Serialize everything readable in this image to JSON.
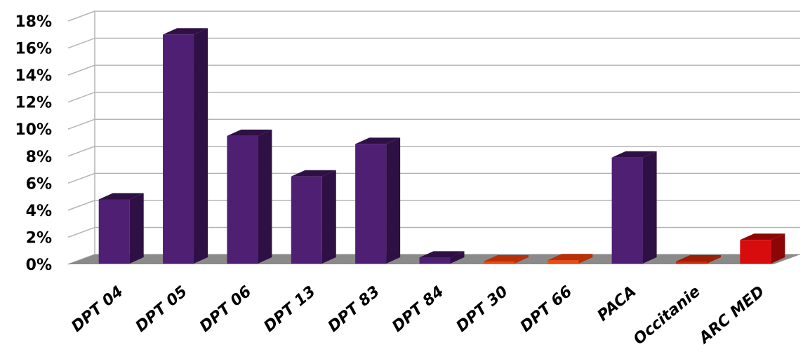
{
  "chart_data": {
    "type": "bar",
    "title": "",
    "xlabel": "",
    "ylabel": "",
    "categories": [
      "DPT 04",
      "DPT 05",
      "DPT 06",
      "DPT 13",
      "DPT 83",
      "DPT 84",
      "DPT 30",
      "DPT 66",
      "PACA",
      "Occitanie",
      "ARC MED"
    ],
    "values": [
      4.8,
      17.0,
      9.5,
      6.5,
      8.9,
      0.5,
      0.1,
      0.3,
      7.9,
      0.0,
      1.8
    ],
    "ylim": [
      0,
      18
    ],
    "yticks": [
      "0%",
      "2%",
      "4%",
      "6%",
      "8%",
      "10%",
      "12%",
      "14%",
      "16%",
      "18%"
    ],
    "grid": true,
    "legend": "none",
    "three_d": true,
    "colors": {
      "DPT 04": "#4f1f73",
      "DPT 05": "#4f1f73",
      "DPT 06": "#4f1f73",
      "DPT 13": "#4f1f73",
      "DPT 83": "#4f1f73",
      "DPT 84": "#4f1f73",
      "DPT 30": "#f04a10",
      "DPT 66": "#f04a10",
      "PACA": "#4f1f73",
      "Occitanie": "#d12a08",
      "ARC MED": "#d80c0c"
    },
    "side_colors": {
      "DPT 04": "#2e1045",
      "DPT 05": "#2e1045",
      "DPT 06": "#2e1045",
      "DPT 13": "#2e1045",
      "DPT 83": "#2e1045",
      "DPT 84": "#2e1045",
      "DPT 30": "#b83008",
      "DPT 66": "#b83008",
      "PACA": "#2e1045",
      "Occitanie": "#9c1f05",
      "ARC MED": "#8c0606"
    },
    "floor_color": "#8a8a8a",
    "grid_color": "#b4b4b4"
  }
}
